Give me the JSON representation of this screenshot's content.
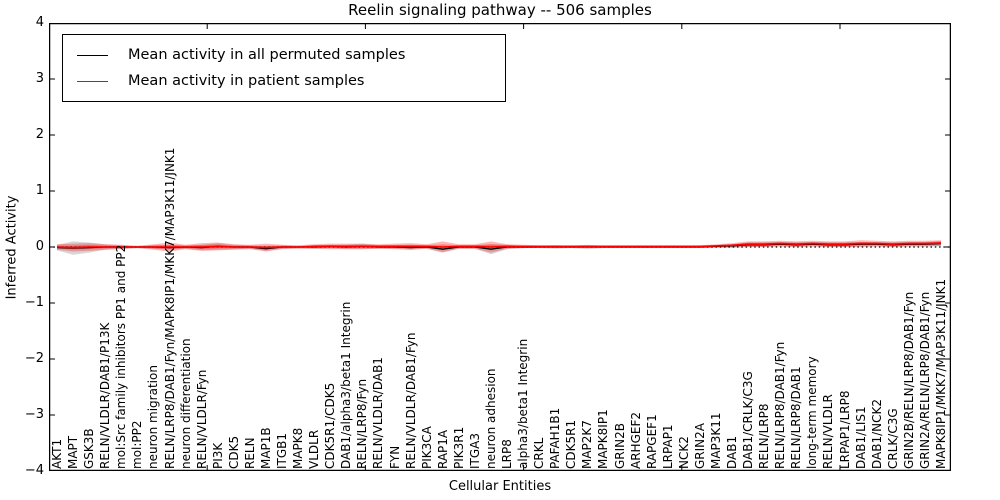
{
  "title": "Reelin signaling pathway -- 506 samples",
  "axes": {
    "xlabel": "Cellular Entities",
    "ylabel": "Inferred Activity",
    "ytick_labels": [
      "4",
      "3",
      "2",
      "1",
      "0",
      "−1",
      "−2",
      "−3",
      "−4"
    ],
    "ylim": [
      -4,
      4
    ],
    "zero_line": "dotted"
  },
  "legend": {
    "permuted": "Mean activity in all permuted samples",
    "patient": "Mean activity in patient samples"
  },
  "colors": {
    "permuted_line": "#000000",
    "permuted_band": "#999999",
    "patient_line": "#ff0000",
    "patient_band": "#ff0000",
    "axis": "#000000"
  },
  "chart_data": {
    "type": "line",
    "title": "Reelin signaling pathway -- 506 samples",
    "xlabel": "Cellular Entities",
    "ylabel": "Inferred Activity",
    "ylim": [
      -4,
      4
    ],
    "legend_position": "upper left",
    "grid": false,
    "categories": [
      "AKT1",
      "MAPT",
      "GSK3B",
      "RELN/VLDLR/DAB1/P13K",
      "mol:Src family inhibitors PP1 and PP2",
      "mol:PP2",
      "neuron migration",
      "RELN/LRP8/DAB1/Fyn/MAPK8IP1/MKK7/MAP3K11/JNK1",
      "neuron differentiation",
      "RELN/VLDLR/Fyn",
      "PI3K",
      "CDK5",
      "RELN",
      "MAP1B",
      "ITGB1",
      "MAPK8",
      "VLDLR",
      "CDK5R1/CDK5",
      "DAB1/alpha3/beta1 Integrin",
      "RELN/LRP8/Fyn",
      "RELN/VLDLR/DAB1",
      "FYN",
      "RELN/VLDLR/DAB1/Fyn",
      "PIK3CA",
      "RAP1A",
      "PIK3R1",
      "ITGA3",
      "neuron adhesion",
      "LRP8",
      "alpha3/beta1 Integrin",
      "CRKL",
      "PAFAH1B1",
      "CDK5R1",
      "MAP2K7",
      "MAPK8IP1",
      "GRIN2B",
      "ARHGEF2",
      "RAPGEF1",
      "LRPAP1",
      "NCK2",
      "GRIN2A",
      "MAP3K11",
      "DAB1",
      "DAB1/CRLK/C3G",
      "RELN/LRP8",
      "RELN/LRP8/DAB1/Fyn",
      "RELN/LRP8/DAB1",
      "long-term memory",
      "RELN/VLDLR",
      "LRPAP1/LRP8",
      "DAB1/LIS1",
      "DAB1/NCK2",
      "CRLK/C3G",
      "GRIN2B/RELN/LRP8/DAB1/Fyn",
      "GRIN2A/RELN/LRP8/DAB1/Fyn",
      "MAPK8IP1/MKK7/MAP3K11/JNK1"
    ],
    "series": [
      {
        "name": "Mean activity in all permuted samples",
        "color": "#000000",
        "values": [
          -0.01,
          -0.02,
          -0.01,
          0,
          0,
          0,
          0,
          -0.01,
          0,
          -0.01,
          0.01,
          0,
          0,
          -0.03,
          0,
          0,
          0,
          0.01,
          0,
          0.01,
          0,
          0,
          -0.01,
          0,
          -0.04,
          0,
          0,
          -0.04,
          0,
          0,
          0,
          0,
          0,
          0,
          0,
          0,
          0,
          0,
          0,
          0,
          0,
          0.01,
          0.02,
          0.04,
          0.04,
          0.05,
          0.04,
          0.05,
          0.04,
          0.04,
          0.05,
          0.05,
          0.04,
          0.05,
          0.05,
          0.06
        ],
        "band": [
          0.05,
          0.12,
          0.09,
          0.05,
          0.03,
          0.02,
          0.03,
          0.04,
          0.03,
          0.05,
          0.06,
          0.04,
          0.03,
          0.04,
          0.03,
          0.02,
          0.03,
          0.03,
          0.04,
          0.05,
          0.03,
          0.03,
          0.04,
          0.03,
          0.05,
          0.03,
          0.03,
          0.09,
          0.04,
          0.02,
          0.02,
          0.03,
          0.02,
          0.04,
          0.02,
          0.02,
          0.02,
          0.02,
          0.02,
          0.02,
          0.02,
          0.02,
          0.03,
          0.04,
          0.04,
          0.04,
          0.04,
          0.04,
          0.04,
          0.04,
          0.04,
          0.04,
          0.04,
          0.04,
          0.04,
          0.05
        ]
      },
      {
        "name": "Mean activity in patient samples",
        "color": "#ff0000",
        "values": [
          0,
          -0.01,
          0,
          0,
          0,
          0,
          0,
          0,
          0,
          0,
          0.01,
          0,
          0,
          -0.01,
          0,
          0,
          0.01,
          0.01,
          0.01,
          0.01,
          0.01,
          0.01,
          0.01,
          0.01,
          0,
          0.01,
          0.01,
          0,
          0.01,
          0.01,
          0.01,
          0.01,
          0.01,
          0.01,
          0.01,
          0.01,
          0.01,
          0.01,
          0.01,
          0.01,
          0.01,
          0.02,
          0.03,
          0.05,
          0.05,
          0.06,
          0.05,
          0.06,
          0.05,
          0.05,
          0.06,
          0.06,
          0.05,
          0.06,
          0.06,
          0.07
        ],
        "band": [
          0.05,
          0.07,
          0.07,
          0.05,
          0.04,
          0.02,
          0.05,
          0.08,
          0.04,
          0.07,
          0.07,
          0.05,
          0.04,
          0.07,
          0.04,
          0.03,
          0.04,
          0.05,
          0.05,
          0.05,
          0.04,
          0.05,
          0.06,
          0.04,
          0.1,
          0.04,
          0.04,
          0.1,
          0.04,
          0.03,
          0.02,
          0.02,
          0.02,
          0.02,
          0.02,
          0.02,
          0.02,
          0.02,
          0.02,
          0.02,
          0.02,
          0.03,
          0.04,
          0.05,
          0.05,
          0.05,
          0.05,
          0.05,
          0.05,
          0.05,
          0.06,
          0.05,
          0.05,
          0.05,
          0.05,
          0.05
        ]
      }
    ]
  }
}
